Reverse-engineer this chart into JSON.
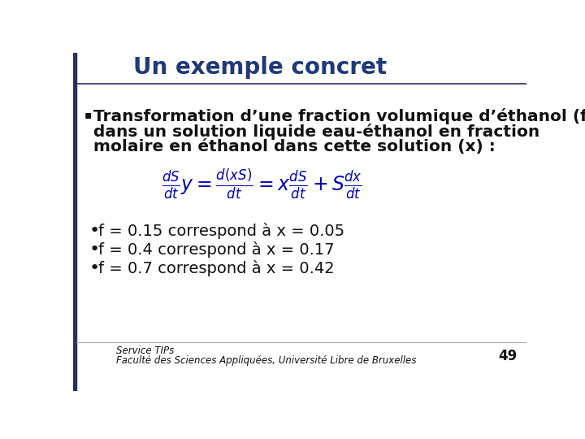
{
  "title": "Un exemple concret",
  "title_color": "#1F3A7A",
  "title_fontsize": 20,
  "slide_bg": "#FFFFFF",
  "bullet_marker": "▪",
  "bullet_text_lines": [
    "Transformation d’une fraction volumique d’éthanol (f)",
    "dans un solution liquide eau-éthanol en fraction",
    "molaire en éthanol dans cette solution (x) :"
  ],
  "bullet_fontsize": 14.5,
  "bullet_color": "#111111",
  "equation_color": "#0000BB",
  "equation_fontsize": 17,
  "bullet_points": [
    "f = 0.15 correspond à x = 0.05",
    "f = 0.4 correspond à x = 0.17",
    "f = 0.7 correspond à x = 0.42"
  ],
  "bullet_points_fontsize": 14,
  "bullet_points_color": "#111111",
  "footer_line1": "Service TIPs",
  "footer_line2": "Faculté des Sciences Appliquées, Université Libre de Bruxelles",
  "footer_fontsize": 8.5,
  "footer_color": "#111111",
  "page_number": "49",
  "left_bar_color": "#2B2B6B",
  "divider_color": "#AAAAAA"
}
